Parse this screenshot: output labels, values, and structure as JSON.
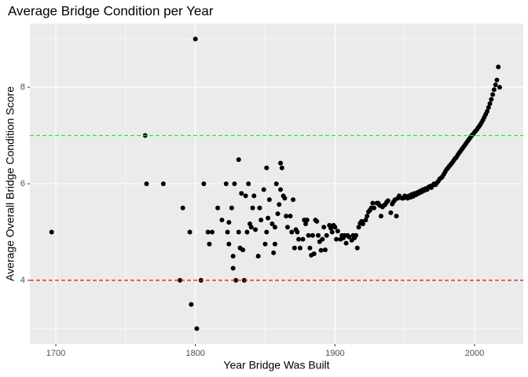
{
  "chart_data": {
    "type": "scatter",
    "title": "Average Bridge Condition per Year",
    "x_label": "Year Bridge Was Built",
    "y_label": "Average Overall Bridge Condition Score",
    "color": "#000000",
    "xlim": [
      1681.4,
      2034.9
    ],
    "ylim": [
      2.68,
      9.32
    ],
    "xticks": [
      1700,
      1800,
      1900,
      2000
    ],
    "yticks": [
      4,
      6,
      8
    ],
    "grid": true,
    "hlines": [
      {
        "value": 7,
        "color": "#00ff00"
      },
      {
        "value": 4,
        "color": "#ff0000"
      }
    ],
    "x": [
      1697,
      1764,
      1765,
      1777,
      1789,
      1791,
      1796,
      1797,
      1800,
      1801,
      1804,
      1806,
      1809,
      1810,
      1812,
      1816,
      1819,
      1822,
      1823,
      1824,
      1824,
      1826,
      1827,
      1827,
      1828,
      1829,
      1831,
      1831,
      1832,
      1833,
      1834,
      1835,
      1836,
      1837,
      1838,
      1839,
      1840,
      1841,
      1842,
      1843,
      1845,
      1846,
      1847,
      1849,
      1850,
      1851,
      1851,
      1852,
      1853,
      1855,
      1856,
      1857,
      1857,
      1858,
      1859,
      1860,
      1861,
      1861,
      1862,
      1863,
      1864,
      1865,
      1866,
      1868,
      1869,
      1870,
      1871,
      1872,
      1873,
      1874,
      1875,
      1877,
      1878,
      1879,
      1880,
      1881,
      1882,
      1883,
      1884,
      1885,
      1886,
      1887,
      1888,
      1889,
      1890,
      1891,
      1892,
      1893,
      1894,
      1896,
      1897,
      1898,
      1899,
      1900,
      1901,
      1902,
      1904,
      1905,
      1906,
      1907,
      1908,
      1909,
      1910,
      1912,
      1913,
      1914,
      1915,
      1916,
      1917,
      1918,
      1919,
      1920,
      1922,
      1923,
      1924,
      1925,
      1926,
      1927,
      1928,
      1930,
      1931,
      1932,
      1933,
      1934,
      1935,
      1936,
      1937,
      1938,
      1940,
      1941,
      1942,
      1943,
      1944,
      1945,
      1946,
      1948,
      1949,
      1950,
      1951,
      1952,
      1953,
      1954,
      1955,
      1956,
      1957,
      1958,
      1959,
      1960,
      1961,
      1962,
      1963,
      1964,
      1965,
      1966,
      1967,
      1968,
      1969,
      1970,
      1971,
      1972,
      1973,
      1974,
      1975,
      1976,
      1977,
      1978,
      1979,
      1980,
      1981,
      1982,
      1983,
      1984,
      1985,
      1986,
      1987,
      1988,
      1989,
      1990,
      1991,
      1992,
      1993,
      1994,
      1995,
      1996,
      1997,
      1998,
      1999,
      2000,
      2001,
      2002,
      2003,
      2004,
      2005,
      2006,
      2007,
      2008,
      2009,
      2010,
      2011,
      2012,
      2013,
      2014,
      2015,
      2016,
      2017,
      2018
    ],
    "y": [
      5.0,
      7.0,
      6.0,
      6.0,
      4.0,
      5.5,
      5.0,
      3.5,
      9.0,
      3.0,
      4.0,
      6.0,
      5.0,
      4.75,
      5.0,
      5.5,
      5.25,
      6.0,
      5.0,
      4.75,
      5.2,
      5.5,
      4.5,
      4.25,
      6.0,
      4.0,
      6.5,
      5.0,
      4.67,
      5.8,
      4.63,
      4.0,
      5.75,
      5.0,
      6.0,
      5.17,
      5.1,
      5.5,
      5.75,
      5.05,
      4.5,
      5.5,
      5.25,
      5.88,
      4.75,
      6.33,
      5.0,
      5.29,
      5.67,
      5.17,
      4.57,
      4.75,
      5.1,
      6.0,
      5.38,
      5.57,
      5.88,
      6.43,
      6.33,
      5.75,
      5.7,
      5.33,
      5.1,
      5.33,
      5.0,
      5.67,
      4.67,
      5.05,
      5.0,
      4.85,
      4.67,
      4.85,
      5.25,
      5.17,
      5.25,
      4.93,
      4.67,
      4.52,
      4.93,
      4.55,
      5.25,
      5.22,
      4.93,
      4.8,
      4.62,
      4.85,
      5.1,
      4.63,
      4.93,
      5.14,
      5.08,
      5.0,
      5.14,
      5.1,
      4.85,
      5.02,
      4.85,
      4.93,
      4.88,
      4.93,
      4.77,
      4.93,
      4.9,
      4.83,
      4.93,
      4.88,
      4.93,
      4.67,
      5.1,
      5.18,
      5.22,
      5.17,
      5.25,
      5.33,
      5.42,
      5.45,
      5.5,
      5.6,
      5.5,
      5.6,
      5.6,
      5.55,
      5.33,
      5.52,
      5.55,
      5.57,
      5.62,
      5.65,
      5.4,
      5.58,
      5.63,
      5.67,
      5.33,
      5.7,
      5.75,
      5.7,
      5.7,
      5.75,
      5.73,
      5.7,
      5.75,
      5.72,
      5.78,
      5.74,
      5.8,
      5.77,
      5.82,
      5.8,
      5.85,
      5.83,
      5.88,
      5.86,
      5.9,
      5.88,
      5.93,
      5.95,
      5.92,
      5.97,
      6.0,
      5.98,
      6.02,
      6.05,
      6.1,
      6.12,
      6.15,
      6.2,
      6.25,
      6.3,
      6.33,
      6.37,
      6.4,
      6.44,
      6.48,
      6.52,
      6.55,
      6.6,
      6.64,
      6.68,
      6.72,
      6.76,
      6.8,
      6.84,
      6.88,
      6.92,
      6.96,
      7.0,
      7.03,
      7.07,
      7.1,
      7.14,
      7.18,
      7.22,
      7.27,
      7.32,
      7.38,
      7.44,
      7.5,
      7.58,
      7.66,
      7.75,
      7.85,
      7.95,
      8.05,
      8.15,
      8.42,
      8.0
    ]
  }
}
